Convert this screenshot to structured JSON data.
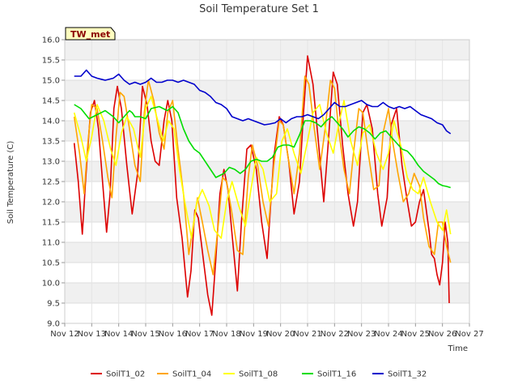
{
  "chart_data": {
    "type": "line",
    "title": "Soil Temperature Set 1",
    "xlabel": "Time",
    "ylabel": "Soil Temperature (C)",
    "badge": "TW_met",
    "ylim": [
      9.0,
      16.0
    ],
    "yticks": [
      "9.0",
      "9.5",
      "10.0",
      "10.5",
      "11.0",
      "11.5",
      "12.0",
      "12.5",
      "13.0",
      "13.5",
      "14.0",
      "14.5",
      "15.0",
      "15.5",
      "16.0"
    ],
    "xlim": [
      12,
      27
    ],
    "xticks": [
      {
        "v": 12,
        "label": "Nov 12"
      },
      {
        "v": 13,
        "label": "Nov 13"
      },
      {
        "v": 14,
        "label": "Nov 14"
      },
      {
        "v": 15,
        "label": "Nov 15"
      },
      {
        "v": 16,
        "label": "Nov 16"
      },
      {
        "v": 17,
        "label": "Nov 17"
      },
      {
        "v": 18,
        "label": "Nov 18"
      },
      {
        "v": 19,
        "label": "Nov 19"
      },
      {
        "v": 20,
        "label": "Nov 20"
      },
      {
        "v": 21,
        "label": "Nov 21"
      },
      {
        "v": 22,
        "label": "Nov 22"
      },
      {
        "v": 23,
        "label": "Nov 23"
      },
      {
        "v": 24,
        "label": "Nov 24"
      },
      {
        "v": 25,
        "label": "Nov 25"
      },
      {
        "v": 26,
        "label": "Nov 26"
      },
      {
        "v": 27,
        "label": "Nov 27"
      }
    ],
    "grid": true,
    "legend_position": "bottom",
    "series": [
      {
        "name": "SoilT1_02",
        "color": "#dd0000",
        "x": [
          12.35,
          12.5,
          12.65,
          12.78,
          12.95,
          13.1,
          13.25,
          13.4,
          13.55,
          13.68,
          13.82,
          13.95,
          14.1,
          14.3,
          14.5,
          14.7,
          14.88,
          15.05,
          15.2,
          15.35,
          15.5,
          15.68,
          15.82,
          15.97,
          16.15,
          16.35,
          16.55,
          16.68,
          16.82,
          16.95,
          17.15,
          17.3,
          17.45,
          17.6,
          17.75,
          17.9,
          18.05,
          18.2,
          18.4,
          18.55,
          18.75,
          18.9,
          19.1,
          19.3,
          19.5,
          19.75,
          19.95,
          20.1,
          20.3,
          20.5,
          20.7,
          20.85,
          21.0,
          21.2,
          21.4,
          21.6,
          21.75,
          21.95,
          22.1,
          22.3,
          22.5,
          22.7,
          22.85,
          23.05,
          23.2,
          23.4,
          23.6,
          23.75,
          23.95,
          24.1,
          24.3,
          24.5,
          24.7,
          24.85,
          25.0,
          25.15,
          25.3,
          25.5,
          25.6,
          25.7,
          25.8,
          25.9,
          26.0,
          26.1,
          26.2,
          26.25
        ],
        "y": [
          13.45,
          12.5,
          11.2,
          12.6,
          14.2,
          14.5,
          13.8,
          12.5,
          11.25,
          12.2,
          14.3,
          14.85,
          14.3,
          12.9,
          11.7,
          12.7,
          14.85,
          14.4,
          13.5,
          13.0,
          12.9,
          14.0,
          14.5,
          14.0,
          12.1,
          11.1,
          9.65,
          10.3,
          11.8,
          11.6,
          10.5,
          9.7,
          9.2,
          10.6,
          12.2,
          12.8,
          12.3,
          11.2,
          9.8,
          11.5,
          13.3,
          13.4,
          12.8,
          11.5,
          10.6,
          13.1,
          14.1,
          13.9,
          13.0,
          11.7,
          12.5,
          14.2,
          15.6,
          14.9,
          13.5,
          12.0,
          13.3,
          15.2,
          14.9,
          13.4,
          12.2,
          11.4,
          12.0,
          14.2,
          14.4,
          13.8,
          12.2,
          11.4,
          12.1,
          13.9,
          14.3,
          12.9,
          12.0,
          11.4,
          11.5,
          12.0,
          12.3,
          11.3,
          10.7,
          10.6,
          10.2,
          9.95,
          10.5,
          11.5,
          11.0,
          9.5
        ]
      },
      {
        "name": "SoilT1_04",
        "color": "#ffa500",
        "x": [
          12.35,
          12.55,
          12.72,
          12.85,
          13.0,
          13.2,
          13.4,
          13.6,
          13.75,
          13.9,
          14.05,
          14.2,
          14.4,
          14.6,
          14.8,
          14.95,
          15.1,
          15.3,
          15.5,
          15.68,
          15.82,
          16.0,
          16.2,
          16.4,
          16.6,
          16.78,
          16.92,
          17.1,
          17.3,
          17.5,
          17.7,
          17.85,
          18.0,
          18.2,
          18.4,
          18.6,
          18.8,
          18.95,
          19.15,
          19.35,
          19.55,
          19.75,
          19.95,
          20.1,
          20.3,
          20.5,
          20.7,
          20.9,
          21.05,
          21.25,
          21.45,
          21.65,
          21.85,
          22.0,
          22.15,
          22.35,
          22.55,
          22.7,
          22.9,
          23.05,
          23.25,
          23.45,
          23.65,
          23.8,
          24.0,
          24.15,
          24.35,
          24.55,
          24.75,
          24.95,
          25.15,
          25.3,
          25.5,
          25.7,
          25.85,
          26.0,
          26.15,
          26.3
        ],
        "y": [
          14.1,
          13.2,
          12.2,
          13.4,
          14.4,
          14.3,
          13.5,
          12.6,
          12.1,
          13.6,
          14.7,
          14.6,
          13.8,
          12.9,
          12.5,
          14.2,
          15.0,
          14.5,
          13.7,
          13.3,
          14.2,
          14.5,
          13.3,
          12.2,
          10.7,
          11.5,
          12.1,
          11.5,
          10.8,
          10.2,
          11.5,
          12.6,
          12.5,
          11.7,
          10.8,
          10.7,
          12.6,
          13.4,
          12.9,
          12.0,
          11.4,
          12.9,
          14.0,
          13.9,
          13.0,
          12.2,
          13.2,
          15.1,
          14.9,
          13.8,
          12.8,
          13.8,
          15.0,
          14.8,
          13.8,
          12.8,
          12.2,
          13.2,
          14.3,
          14.2,
          13.2,
          12.3,
          12.4,
          13.7,
          14.3,
          13.5,
          12.7,
          12.0,
          12.2,
          12.7,
          12.4,
          11.6,
          10.9,
          10.7,
          11.5,
          11.5,
          10.9,
          10.5
        ]
      },
      {
        "name": "SoilT1_08",
        "color": "#ffff00",
        "x": [
          12.35,
          12.6,
          12.8,
          13.0,
          13.2,
          13.45,
          13.7,
          13.9,
          14.1,
          14.3,
          14.55,
          14.8,
          15.0,
          15.2,
          15.45,
          15.65,
          15.85,
          16.05,
          16.25,
          16.45,
          16.7,
          16.9,
          17.1,
          17.35,
          17.55,
          17.8,
          18.0,
          18.2,
          18.45,
          18.7,
          18.9,
          19.1,
          19.35,
          19.6,
          19.85,
          20.05,
          20.25,
          20.5,
          20.75,
          21.0,
          21.2,
          21.45,
          21.7,
          21.95,
          22.15,
          22.35,
          22.6,
          22.85,
          23.05,
          23.3,
          23.55,
          23.8,
          24.0,
          24.2,
          24.45,
          24.7,
          24.9,
          25.1,
          25.3,
          25.55,
          25.8,
          26.0,
          26.15,
          26.3
        ],
        "y": [
          14.2,
          13.6,
          13.0,
          13.6,
          14.4,
          14.0,
          13.3,
          12.9,
          13.7,
          14.1,
          13.8,
          13.1,
          14.3,
          14.6,
          14.0,
          13.5,
          14.0,
          13.8,
          12.8,
          12.0,
          11.1,
          12.0,
          12.3,
          11.9,
          11.3,
          11.1,
          12.0,
          12.5,
          11.9,
          11.4,
          12.3,
          13.1,
          12.8,
          12.0,
          12.2,
          13.5,
          13.8,
          13.2,
          12.7,
          13.5,
          14.2,
          14.4,
          13.7,
          13.2,
          13.9,
          14.5,
          13.5,
          12.9,
          13.7,
          13.9,
          13.2,
          12.8,
          13.2,
          14.0,
          13.4,
          12.6,
          12.3,
          12.2,
          12.6,
          12.0,
          11.5,
          11.3,
          11.8,
          11.2
        ]
      },
      {
        "name": "SoilT1_16",
        "color": "#00dd00",
        "x": [
          12.35,
          12.6,
          12.9,
          13.2,
          13.5,
          13.8,
          14.0,
          14.2,
          14.4,
          14.5,
          14.6,
          14.8,
          15.0,
          15.2,
          15.5,
          15.8,
          16.0,
          16.2,
          16.4,
          16.6,
          16.8,
          17.0,
          17.3,
          17.6,
          17.9,
          18.1,
          18.3,
          18.5,
          18.7,
          18.9,
          19.1,
          19.3,
          19.5,
          19.7,
          19.9,
          20.1,
          20.3,
          20.5,
          20.7,
          20.9,
          21.1,
          21.3,
          21.5,
          21.7,
          21.9,
          22.1,
          22.3,
          22.5,
          22.7,
          22.9,
          23.1,
          23.3,
          23.5,
          23.7,
          23.9,
          24.1,
          24.3,
          24.5,
          24.7,
          24.9,
          25.1,
          25.3,
          25.5,
          25.7,
          25.85,
          26.0,
          26.15,
          26.3
        ],
        "y": [
          14.4,
          14.3,
          14.05,
          14.15,
          14.25,
          14.1,
          13.95,
          14.1,
          14.25,
          14.2,
          14.1,
          14.1,
          14.05,
          14.3,
          14.35,
          14.25,
          14.35,
          14.2,
          13.8,
          13.5,
          13.3,
          13.2,
          12.9,
          12.6,
          12.7,
          12.85,
          12.8,
          12.7,
          12.8,
          13.0,
          13.05,
          13.0,
          13.0,
          13.1,
          13.35,
          13.4,
          13.4,
          13.35,
          13.65,
          14.0,
          14.0,
          13.95,
          13.85,
          14.0,
          14.1,
          13.95,
          13.8,
          13.6,
          13.75,
          13.85,
          13.8,
          13.7,
          13.55,
          13.7,
          13.75,
          13.6,
          13.45,
          13.3,
          13.25,
          13.1,
          12.9,
          12.75,
          12.65,
          12.55,
          12.45,
          12.4,
          12.38,
          12.35
        ]
      },
      {
        "name": "SoilT1_32",
        "color": "#0000cc",
        "x": [
          12.35,
          12.6,
          12.8,
          13.0,
          13.2,
          13.5,
          13.8,
          14.0,
          14.2,
          14.4,
          14.6,
          14.8,
          15.0,
          15.2,
          15.4,
          15.6,
          15.8,
          16.0,
          16.2,
          16.4,
          16.6,
          16.8,
          17.0,
          17.2,
          17.4,
          17.6,
          17.8,
          18.0,
          18.2,
          18.4,
          18.6,
          18.8,
          19.0,
          19.2,
          19.4,
          19.6,
          19.8,
          20.0,
          20.2,
          20.4,
          20.6,
          20.8,
          21.0,
          21.2,
          21.4,
          21.6,
          21.8,
          22.0,
          22.2,
          22.4,
          22.6,
          22.8,
          23.0,
          23.2,
          23.4,
          23.6,
          23.8,
          24.0,
          24.2,
          24.4,
          24.6,
          24.8,
          25.0,
          25.2,
          25.4,
          25.6,
          25.8,
          26.0,
          26.15,
          26.3
        ],
        "y": [
          15.1,
          15.1,
          15.25,
          15.1,
          15.05,
          15.0,
          15.05,
          15.15,
          15.0,
          14.9,
          14.95,
          14.9,
          14.95,
          15.05,
          14.95,
          14.95,
          15.0,
          15.0,
          14.95,
          15.0,
          14.95,
          14.9,
          14.75,
          14.7,
          14.6,
          14.45,
          14.4,
          14.3,
          14.1,
          14.05,
          14.0,
          14.05,
          14.0,
          13.95,
          13.9,
          13.92,
          13.95,
          14.05,
          13.95,
          14.05,
          14.1,
          14.1,
          14.15,
          14.1,
          14.05,
          14.15,
          14.3,
          14.45,
          14.35,
          14.35,
          14.4,
          14.45,
          14.5,
          14.4,
          14.35,
          14.35,
          14.45,
          14.35,
          14.3,
          14.35,
          14.3,
          14.35,
          14.25,
          14.15,
          14.1,
          14.05,
          13.95,
          13.9,
          13.75,
          13.68
        ]
      }
    ]
  }
}
